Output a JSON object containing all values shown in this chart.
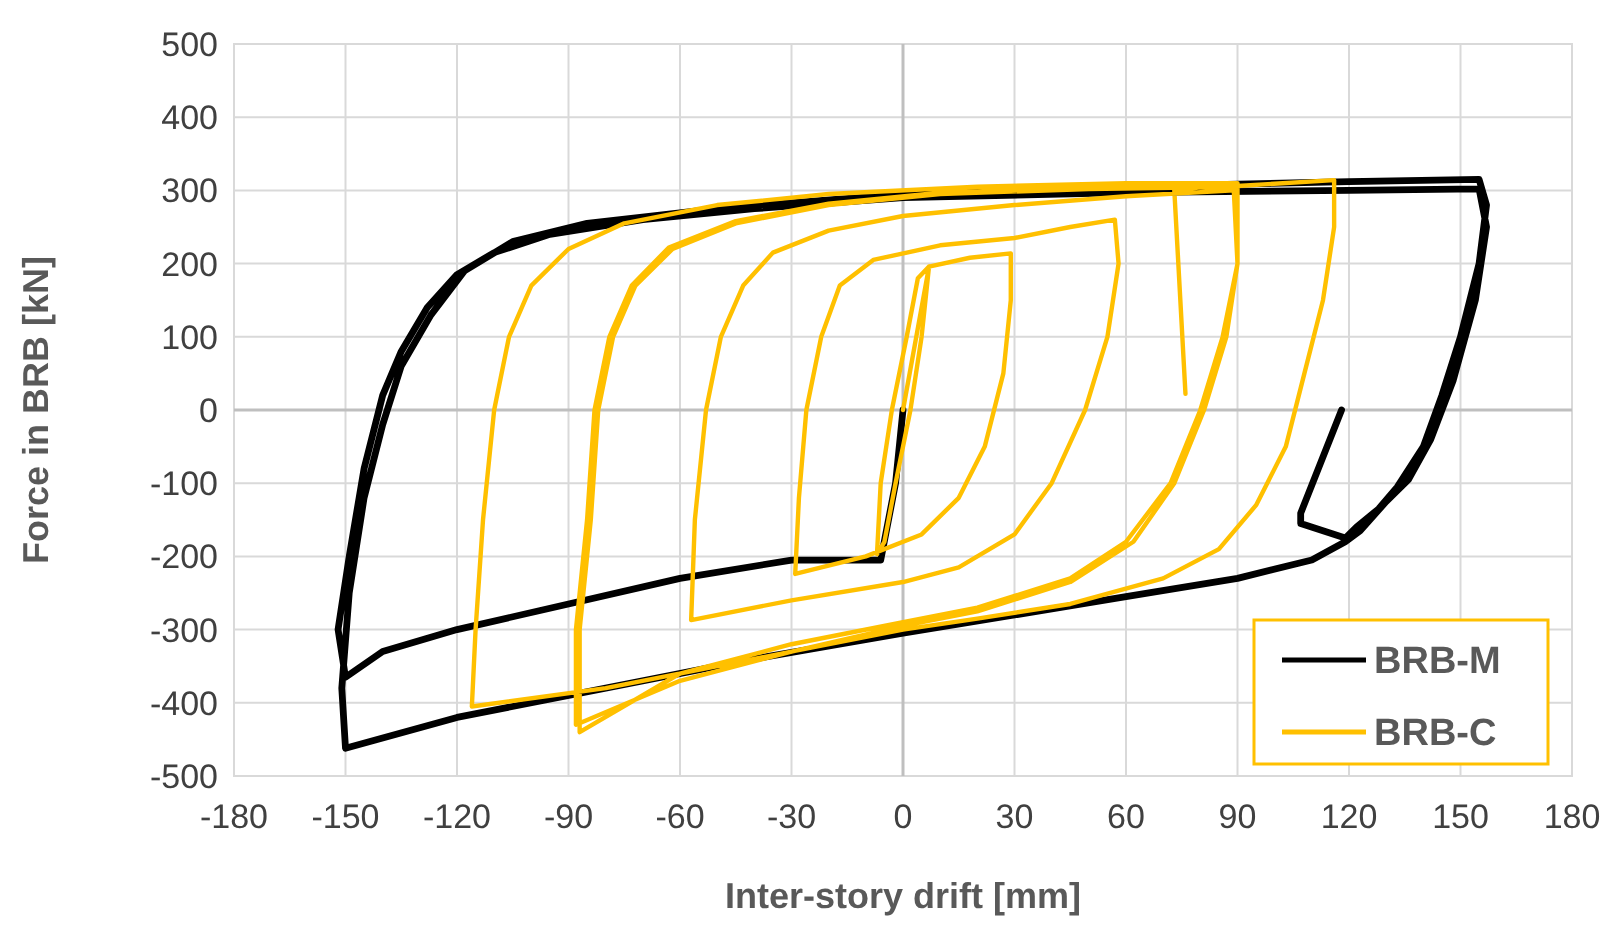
{
  "chart_data": {
    "type": "line",
    "xlabel": "Inter-story drift [mm]",
    "ylabel": "Force in BRB [kN]",
    "xlim": [
      -180,
      180
    ],
    "xticks": [
      -180,
      -150,
      -120,
      -90,
      -60,
      -30,
      0,
      30,
      60,
      90,
      120,
      150,
      180
    ],
    "ylim": [
      -500,
      500
    ],
    "yticks": [
      -500,
      -400,
      -300,
      -200,
      -100,
      0,
      100,
      200,
      300,
      400,
      500
    ],
    "grid": true,
    "legend": "bottom right",
    "marker": "none",
    "line_style": "solid",
    "series": [
      {
        "name": "BRB-M",
        "color": "#000000",
        "x": [
          0,
          -2,
          -6,
          -30,
          -60,
          -90,
          -120,
          -140,
          -150,
          -152,
          -149,
          -145,
          -140,
          -135,
          -128,
          -120,
          -110,
          -95,
          -70,
          -40,
          0,
          60,
          120,
          155,
          157,
          154,
          148,
          142,
          136,
          130,
          123,
          119,
          110,
          90,
          60,
          30,
          0,
          -40,
          -80,
          -120,
          -150,
          -151,
          -149,
          -145,
          -140,
          -135,
          -127,
          -118,
          -105,
          -85,
          -50,
          0,
          60,
          120,
          155,
          157,
          155,
          150,
          145,
          140,
          133,
          128,
          122,
          119,
          107,
          107,
          118
        ],
        "values": [
          0,
          -100,
          -205,
          -205,
          -230,
          -265,
          -300,
          -330,
          -365,
          -300,
          -200,
          -80,
          20,
          80,
          140,
          185,
          215,
          240,
          260,
          275,
          290,
          297,
          300,
          302,
          250,
          150,
          40,
          -40,
          -95,
          -125,
          -165,
          -180,
          -205,
          -230,
          -255,
          -280,
          -305,
          -340,
          -380,
          -420,
          -462,
          -380,
          -250,
          -120,
          -20,
          60,
          130,
          190,
          230,
          255,
          275,
          295,
          305,
          312,
          315,
          280,
          200,
          100,
          20,
          -50,
          -105,
          -135,
          -160,
          -175,
          -155,
          -141,
          0
        ]
      },
      {
        "name": "BRB-C",
        "color": "#ffc000",
        "x": [
          0,
          7,
          5,
          2,
          -2,
          -5,
          -7,
          -6,
          -3,
          1,
          4,
          7,
          18,
          29,
          29,
          27,
          22,
          15,
          5,
          -10,
          -29,
          -28,
          -26,
          -22,
          -17,
          -8,
          10,
          30,
          45,
          57,
          58,
          55,
          49,
          40,
          30,
          15,
          0,
          -30,
          -57,
          -56,
          -53,
          -49,
          -43,
          -35,
          -20,
          0,
          30,
          60,
          89,
          90,
          86,
          80,
          72,
          60,
          45,
          20,
          0,
          -30,
          -60,
          -87,
          -87,
          -84,
          -82,
          -78,
          -72,
          -62,
          -45,
          -20,
          10,
          50,
          90,
          90,
          87,
          81,
          73,
          62,
          45,
          20,
          0,
          -30,
          -60,
          -88,
          -88,
          -85,
          -83,
          -79,
          -73,
          -63,
          -45,
          -20,
          10,
          50,
          90,
          116,
          116,
          113,
          108,
          103,
          95,
          85,
          70,
          45,
          20,
          0,
          -40,
          -80,
          -116,
          -115,
          -113,
          -110,
          -106,
          -100,
          -90,
          -75,
          -50,
          -20,
          20,
          60,
          90,
          73,
          76
        ],
        "values": [
          0,
          196,
          100,
          0,
          -100,
          -180,
          -197,
          -100,
          0,
          100,
          180,
          196,
          208,
          214,
          150,
          50,
          -50,
          -120,
          -170,
          -200,
          -224,
          -120,
          0,
          100,
          170,
          205,
          225,
          235,
          250,
          260,
          200,
          100,
          0,
          -100,
          -170,
          -215,
          -235,
          -260,
          -287,
          -150,
          0,
          100,
          170,
          215,
          245,
          265,
          280,
          292,
          300,
          200,
          100,
          0,
          -100,
          -180,
          -230,
          -270,
          -290,
          -320,
          -360,
          -440,
          -300,
          -150,
          0,
          100,
          170,
          220,
          255,
          280,
          295,
          302,
          305,
          200,
          100,
          0,
          -100,
          -180,
          -235,
          -275,
          -295,
          -330,
          -370,
          -430,
          -300,
          -150,
          0,
          100,
          170,
          222,
          258,
          282,
          297,
          304,
          306,
          314,
          250,
          150,
          50,
          -50,
          -130,
          -190,
          -230,
          -265,
          -285,
          -300,
          -340,
          -380,
          -405,
          -300,
          -150,
          0,
          100,
          170,
          220,
          255,
          280,
          295,
          305,
          310,
          310,
          300,
          22
        ]
      }
    ]
  }
}
